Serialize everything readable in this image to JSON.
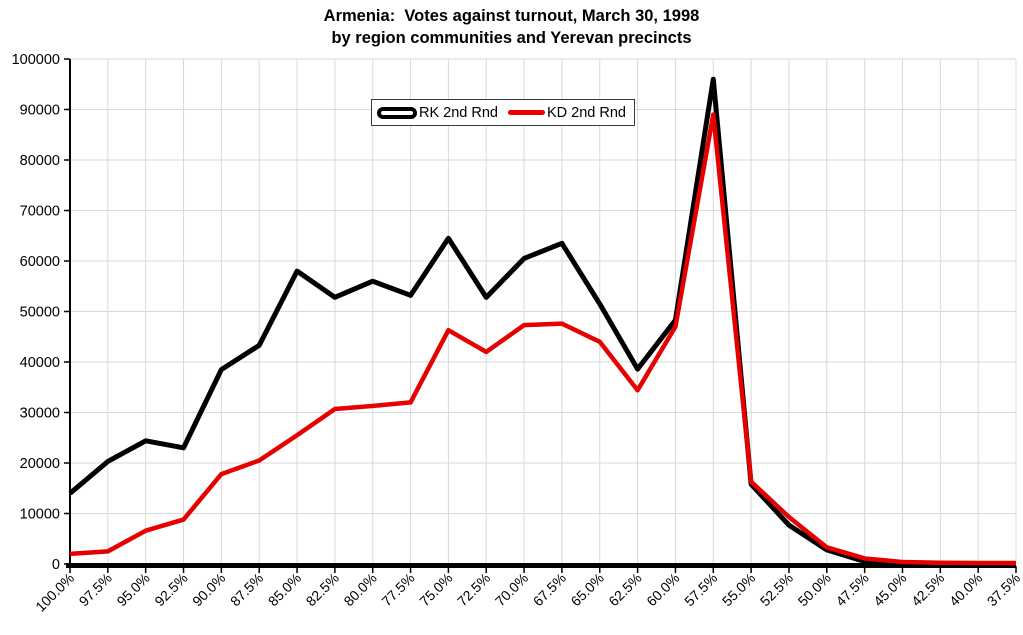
{
  "title": {
    "line1": "Armenia:  Votes against turnout, March 30, 1998",
    "line2": "by region communities and Yerevan precincts"
  },
  "legend": {
    "items": [
      {
        "label": "RK 2nd Rnd",
        "color": "#000000",
        "sample": "thick-hollow-line"
      },
      {
        "label": "KD 2nd Rnd",
        "color": "#e60000",
        "sample": "solid-line"
      }
    ]
  },
  "chart_data": {
    "type": "line",
    "title": "Armenia: Votes against turnout, March 30, 1998 by region communities and Yerevan precincts",
    "xlabel": "",
    "ylabel": "",
    "categories": [
      "100.0%",
      "97.5%",
      "95.0%",
      "92.5%",
      "90.0%",
      "87.5%",
      "85.0%",
      "82.5%",
      "80.0%",
      "77.5%",
      "75.0%",
      "72.5%",
      "70.0%",
      "67.5%",
      "65.0%",
      "62.5%",
      "60.0%",
      "57.5%",
      "55.0%",
      "52.5%",
      "50.0%",
      "47.5%",
      "45.0%",
      "42.5%",
      "40.0%",
      "37.5%"
    ],
    "series": [
      {
        "name": "RK 2nd Rnd",
        "color": "#000000",
        "stroke_width": 5,
        "values": [
          14000,
          20300,
          24400,
          23000,
          38500,
          43300,
          58000,
          52800,
          56000,
          53200,
          64500,
          52800,
          60500,
          63500,
          51500,
          38600,
          48300,
          96000,
          15800,
          7700,
          2800,
          500,
          100,
          0,
          0,
          0
        ]
      },
      {
        "name": "KD 2nd Rnd",
        "color": "#e60000",
        "stroke_width": 4.5,
        "values": [
          2000,
          2500,
          6600,
          8800,
          17800,
          20500,
          25500,
          30700,
          31300,
          32000,
          46300,
          42000,
          47300,
          47600,
          44000,
          34400,
          47000,
          89000,
          16300,
          9300,
          3300,
          1100,
          400,
          250,
          200,
          200
        ]
      }
    ],
    "ylim": [
      0,
      100000
    ],
    "ytick_step": 10000,
    "yticks": [
      "0",
      "10000",
      "20000",
      "30000",
      "40000",
      "50000",
      "60000",
      "70000",
      "80000",
      "90000",
      "100000"
    ],
    "grid": true,
    "legend_position": "top-center"
  },
  "colors": {
    "background": "#ffffff",
    "grid": "#d9d9d9",
    "axis": "#000000",
    "series_rk": "#000000",
    "series_kd": "#e60000"
  }
}
